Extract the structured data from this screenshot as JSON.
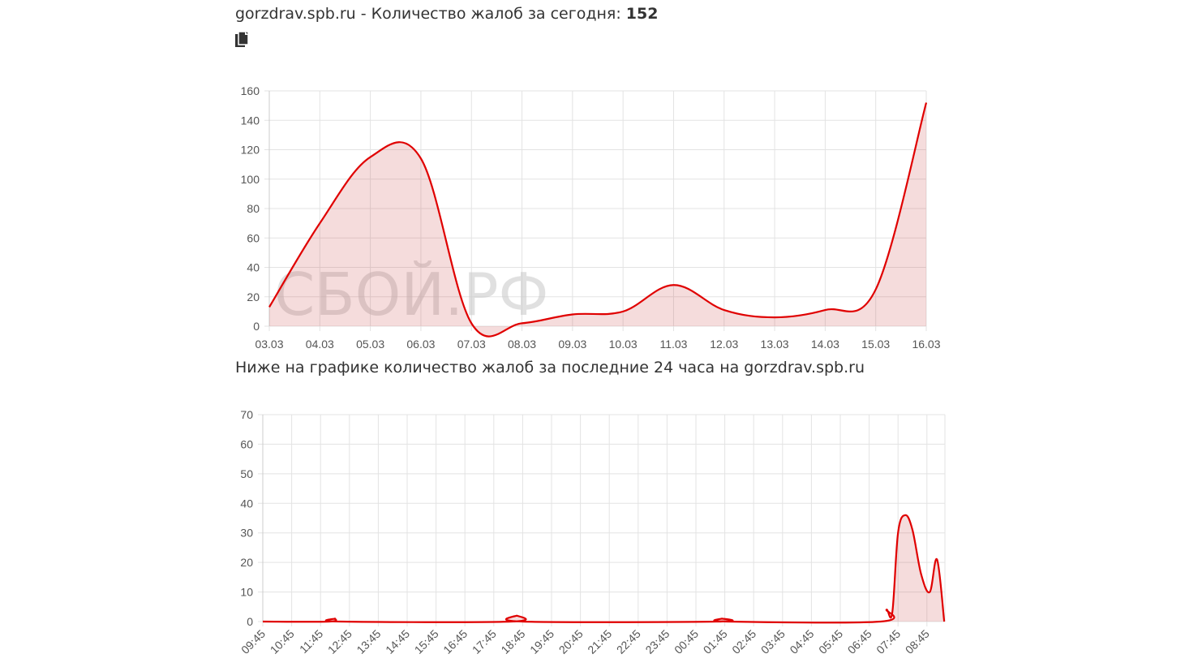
{
  "header": {
    "prefix": "gorzdrav.spb.ru - Количество жалоб за сегодня:",
    "count": "152",
    "copy_icon": "copy-icon"
  },
  "watermark": "СБОЙ.РФ",
  "subheading": "Ниже на графике количество жалоб за последние 24 часа на gorzdrav.spb.ru",
  "colors": {
    "line": "#e00000",
    "fill": "rgba(200,60,60,0.18)",
    "grid": "#e3e3e3",
    "axis": "#cccccc"
  },
  "chart_data": [
    {
      "type": "area",
      "title": "",
      "x": [
        "03.03",
        "04.03",
        "05.03",
        "06.03",
        "07.03",
        "08.03",
        "09.03",
        "10.03",
        "11.03",
        "12.03",
        "13.03",
        "14.03",
        "15.03",
        "16.03"
      ],
      "series": [
        {
          "values": [
            13,
            70,
            115,
            114,
            2,
            2,
            8,
            10,
            28,
            11,
            6,
            11,
            25,
            152
          ]
        }
      ],
      "ylim": [
        0,
        160
      ],
      "yticks": [
        0,
        20,
        40,
        60,
        80,
        100,
        120,
        140,
        160
      ],
      "grid": true
    },
    {
      "type": "area",
      "title": "",
      "x": [
        "09:45",
        "10:45",
        "11:45",
        "12:45",
        "13:45",
        "14:45",
        "15:45",
        "16:45",
        "17:45",
        "18:45",
        "19:45",
        "20:45",
        "21:45",
        "22:45",
        "23:45",
        "00:45",
        "01:45",
        "02:45",
        "03:45",
        "04:45",
        "05:45",
        "06:45",
        "07:45",
        "08:45"
      ],
      "series": [
        {
          "points": [
            [
              0,
              0
            ],
            [
              2.3,
              0
            ],
            [
              2.5,
              1
            ],
            [
              2.7,
              0
            ],
            [
              8.6,
              0
            ],
            [
              8.8,
              2
            ],
            [
              9.0,
              0
            ],
            [
              15.7,
              0
            ],
            [
              15.9,
              1
            ],
            [
              16.1,
              0
            ],
            [
              21.4,
              0
            ],
            [
              21.6,
              4
            ],
            [
              21.8,
              3
            ],
            [
              22.0,
              30
            ],
            [
              22.25,
              36
            ],
            [
              22.5,
              31
            ],
            [
              22.8,
              16
            ],
            [
              23.1,
              10
            ],
            [
              23.35,
              21
            ],
            [
              23.6,
              0
            ]
          ]
        }
      ],
      "xmax": 23.6,
      "ylim": [
        0,
        70
      ],
      "yticks": [
        0,
        10,
        20,
        30,
        40,
        50,
        60,
        70
      ],
      "grid": true
    }
  ]
}
